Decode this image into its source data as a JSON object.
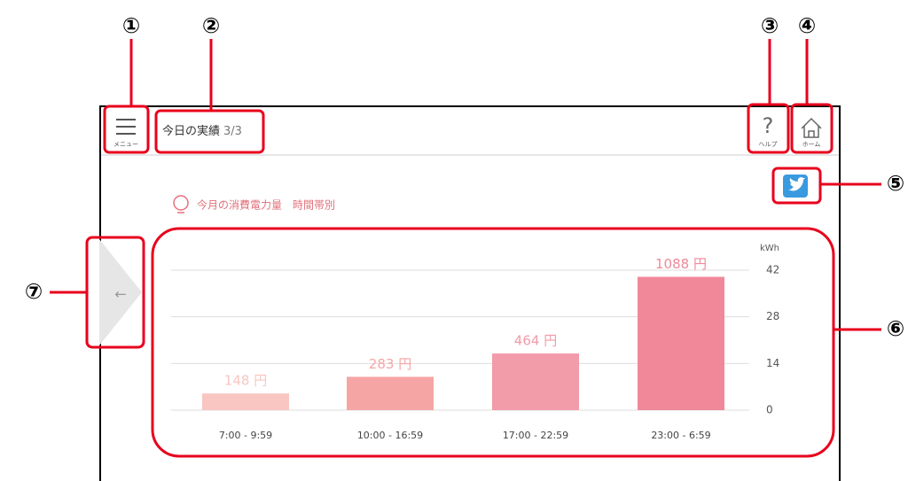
{
  "header": {
    "menu_label": "メニュー",
    "title": "今日の実績",
    "page": "3/3",
    "help_label": "ヘルプ",
    "home_label": "ホーム",
    "back_arrow": "←"
  },
  "callouts": [
    "①",
    "②",
    "③",
    "④",
    "⑤",
    "⑥",
    "⑦"
  ],
  "chart_data": {
    "type": "bar",
    "title": "今月の消費電力量　時間帯別",
    "y_axis_label": "kWh",
    "categories": [
      "7:00 - 9:59",
      "10:00 - 16:59",
      "17:00 - 22:59",
      "23:00 - 6:59"
    ],
    "values": [
      5,
      10,
      17,
      40
    ],
    "annotations": [
      "148 円",
      "283 円",
      "464 円",
      "1088 円"
    ],
    "colors": [
      "#f9c6c1",
      "#f6a5a5",
      "#f29ba9",
      "#f0889a"
    ],
    "ylim": [
      0,
      42
    ],
    "yticks": [
      0,
      14,
      28,
      42
    ],
    "grid": true
  }
}
